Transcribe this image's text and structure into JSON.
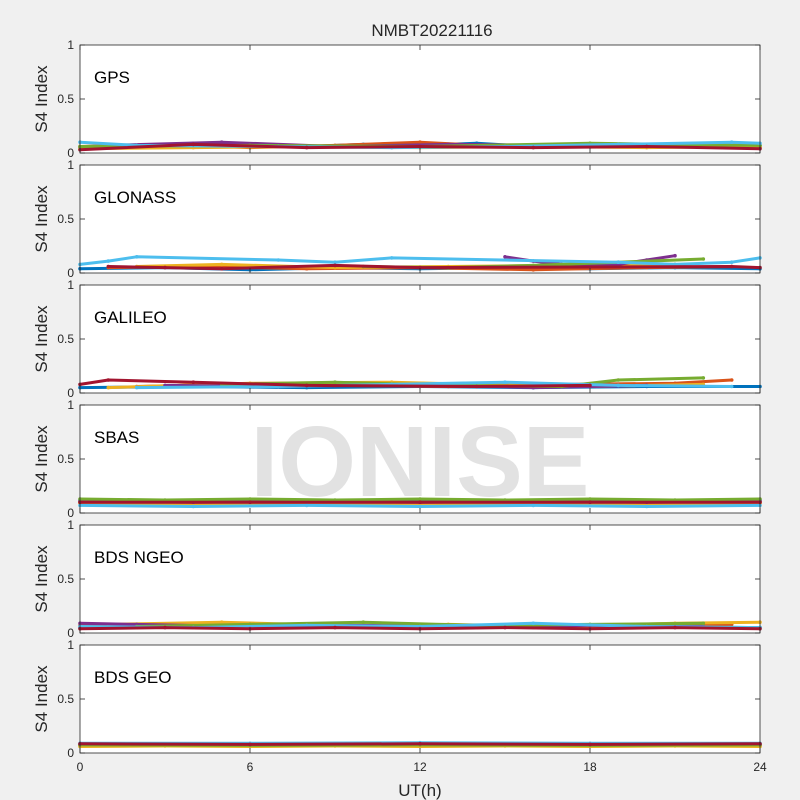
{
  "figure": {
    "title": "NMBT20221116",
    "watermark": "IONISE",
    "xlabel": "UT(h)"
  },
  "colors": [
    "#0072BD",
    "#D95319",
    "#EDB120",
    "#7E2F8E",
    "#77AC30",
    "#4DBEEE",
    "#A2142F"
  ],
  "chart_data": [
    {
      "type": "scatter",
      "label": "GPS",
      "ylabel": "S4 Index",
      "xlim": [
        0,
        24
      ],
      "ylim": [
        0,
        1
      ],
      "xticks": [
        0,
        6,
        12,
        18,
        24
      ],
      "yticks": [
        0,
        0.5,
        1
      ],
      "series": [
        {
          "x": [
            0,
            2,
            4,
            6,
            8,
            10,
            12,
            14,
            16,
            18,
            20,
            22,
            24
          ],
          "y": [
            0.05,
            0.06,
            0.09,
            0.07,
            0.06,
            0.08,
            0.07,
            0.09,
            0.06,
            0.07,
            0.08,
            0.06,
            0.07
          ]
        },
        {
          "x": [
            0,
            3,
            6,
            9,
            12,
            15,
            18,
            21,
            24
          ],
          "y": [
            0.06,
            0.08,
            0.05,
            0.07,
            0.1,
            0.06,
            0.08,
            0.07,
            0.05
          ]
        },
        {
          "x": [
            0,
            4,
            8,
            12,
            16,
            20,
            24
          ],
          "y": [
            0.04,
            0.05,
            0.06,
            0.05,
            0.06,
            0.05,
            0.06
          ]
        },
        {
          "x": [
            1,
            5,
            9,
            13,
            17,
            21
          ],
          "y": [
            0.07,
            0.1,
            0.06,
            0.08,
            0.07,
            0.06
          ]
        },
        {
          "x": [
            0,
            6,
            12,
            18,
            24
          ],
          "y": [
            0.06,
            0.07,
            0.06,
            0.09,
            0.07
          ]
        },
        {
          "x": [
            0,
            2,
            7,
            11,
            15,
            19,
            23,
            24
          ],
          "y": [
            0.1,
            0.07,
            0.06,
            0.05,
            0.06,
            0.08,
            0.1,
            0.09
          ]
        },
        {
          "x": [
            0,
            4,
            8,
            12,
            16,
            20,
            24
          ],
          "y": [
            0.03,
            0.08,
            0.05,
            0.06,
            0.05,
            0.06,
            0.04
          ]
        }
      ]
    },
    {
      "type": "scatter",
      "label": "GLONASS",
      "ylabel": "S4 Index",
      "xlim": [
        0,
        24
      ],
      "ylim": [
        0,
        1
      ],
      "xticks": [
        0,
        6,
        12,
        18,
        24
      ],
      "yticks": [
        0,
        0.5,
        1
      ],
      "series": [
        {
          "x": [
            0,
            3,
            6,
            9,
            12,
            15,
            18,
            21,
            24
          ],
          "y": [
            0.04,
            0.05,
            0.03,
            0.05,
            0.04,
            0.05,
            0.04,
            0.05,
            0.04
          ]
        },
        {
          "x": [
            1,
            4,
            8,
            12,
            16,
            20,
            23
          ],
          "y": [
            0.05,
            0.06,
            0.04,
            0.05,
            0.03,
            0.05,
            0.06
          ]
        },
        {
          "x": [
            2,
            5,
            9,
            13,
            17,
            21
          ],
          "y": [
            0.06,
            0.08,
            0.05,
            0.06,
            0.07,
            0.08
          ]
        },
        {
          "x": [
            15,
            16,
            17,
            18,
            19,
            20,
            21
          ],
          "y": [
            0.15,
            0.11,
            0.08,
            0.07,
            0.08,
            0.12,
            0.16
          ]
        },
        {
          "x": [
            10,
            13,
            16,
            19,
            22
          ],
          "y": [
            0.06,
            0.05,
            0.07,
            0.1,
            0.13
          ]
        },
        {
          "x": [
            0,
            1,
            2,
            7,
            9,
            11,
            19,
            21,
            23,
            24
          ],
          "y": [
            0.08,
            0.11,
            0.15,
            0.12,
            0.1,
            0.14,
            0.1,
            0.08,
            0.1,
            0.14
          ]
        },
        {
          "x": [
            1,
            3,
            5,
            9,
            12,
            23,
            24
          ],
          "y": [
            0.06,
            0.05,
            0.04,
            0.07,
            0.05,
            0.06,
            0.05
          ]
        }
      ]
    },
    {
      "type": "scatter",
      "label": "GALILEO",
      "ylabel": "S4 Index",
      "xlim": [
        0,
        24
      ],
      "ylim": [
        0,
        1
      ],
      "xticks": [
        0,
        6,
        12,
        18,
        24
      ],
      "yticks": [
        0,
        0.5,
        1
      ],
      "series": [
        {
          "x": [
            0,
            4,
            8,
            12,
            16,
            20,
            24
          ],
          "y": [
            0.05,
            0.06,
            0.05,
            0.06,
            0.05,
            0.06,
            0.06
          ]
        },
        {
          "x": [
            2,
            5,
            9,
            13,
            17,
            21,
            23
          ],
          "y": [
            0.06,
            0.08,
            0.07,
            0.06,
            0.08,
            0.09,
            0.12
          ]
        },
        {
          "x": [
            1,
            6,
            11,
            14,
            18,
            22
          ],
          "y": [
            0.05,
            0.09,
            0.1,
            0.08,
            0.06,
            0.08
          ]
        },
        {
          "x": [
            3,
            7,
            12,
            16,
            20
          ],
          "y": [
            0.07,
            0.06,
            0.08,
            0.05,
            0.07
          ]
        },
        {
          "x": [
            5,
            9,
            13,
            17,
            19,
            22
          ],
          "y": [
            0.08,
            0.1,
            0.07,
            0.06,
            0.12,
            0.14
          ]
        },
        {
          "x": [
            2,
            7,
            11,
            15,
            19,
            23
          ],
          "y": [
            0.05,
            0.06,
            0.08,
            0.1,
            0.07,
            0.06
          ]
        },
        {
          "x": [
            0,
            1,
            4,
            8,
            14,
            18
          ],
          "y": [
            0.08,
            0.12,
            0.1,
            0.07,
            0.06,
            0.07
          ]
        }
      ]
    },
    {
      "type": "scatter",
      "label": "SBAS",
      "ylabel": "S4 Index",
      "xlim": [
        0,
        24
      ],
      "ylim": [
        0,
        1
      ],
      "xticks": [
        0,
        6,
        12,
        18,
        24
      ],
      "yticks": [
        0,
        0.5,
        1
      ],
      "series": [
        {
          "x": [
            0,
            3,
            6,
            9,
            12,
            15,
            18,
            21,
            24
          ],
          "y": [
            0.12,
            0.11,
            0.12,
            0.11,
            0.12,
            0.11,
            0.12,
            0.11,
            0.12
          ]
        },
        {
          "x": [
            0,
            4,
            8,
            12,
            16,
            20,
            24
          ],
          "y": [
            0.1,
            0.09,
            0.1,
            0.09,
            0.1,
            0.09,
            0.1
          ]
        },
        {
          "x": [
            0,
            3,
            6,
            9,
            12,
            15,
            18,
            21,
            24
          ],
          "y": [
            0.09,
            0.08,
            0.09,
            0.08,
            0.09,
            0.08,
            0.09,
            0.08,
            0.09
          ]
        },
        {
          "x": [
            0,
            4,
            8,
            12,
            16,
            20,
            24
          ],
          "y": [
            0.11,
            0.1,
            0.11,
            0.1,
            0.11,
            0.1,
            0.11
          ]
        },
        {
          "x": [
            0,
            3,
            6,
            9,
            12,
            15,
            18,
            21,
            24
          ],
          "y": [
            0.13,
            0.12,
            0.13,
            0.12,
            0.13,
            0.12,
            0.13,
            0.12,
            0.13
          ]
        },
        {
          "x": [
            0,
            4,
            8,
            12,
            16,
            20,
            24
          ],
          "y": [
            0.07,
            0.06,
            0.07,
            0.06,
            0.07,
            0.06,
            0.07
          ]
        },
        {
          "x": [
            0,
            6,
            12,
            18,
            24
          ],
          "y": [
            0.1,
            0.1,
            0.1,
            0.1,
            0.1
          ]
        }
      ]
    },
    {
      "type": "scatter",
      "label": "BDS NGEO",
      "ylabel": "S4 Index",
      "xlim": [
        0,
        24
      ],
      "ylim": [
        0,
        1
      ],
      "xticks": [
        0,
        6,
        12,
        18,
        24
      ],
      "yticks": [
        0,
        0.5,
        1
      ],
      "series": [
        {
          "x": [
            0,
            4,
            8,
            12,
            16,
            20,
            24
          ],
          "y": [
            0.05,
            0.06,
            0.05,
            0.06,
            0.05,
            0.06,
            0.05
          ]
        },
        {
          "x": [
            0,
            3,
            7,
            11,
            15,
            19,
            23
          ],
          "y": [
            0.07,
            0.06,
            0.08,
            0.06,
            0.07,
            0.06,
            0.08
          ]
        },
        {
          "x": [
            1,
            5,
            9,
            13,
            17,
            21,
            24
          ],
          "y": [
            0.08,
            0.1,
            0.07,
            0.08,
            0.06,
            0.09,
            0.1
          ]
        },
        {
          "x": [
            0,
            2,
            6,
            10,
            14,
            18,
            22
          ],
          "y": [
            0.09,
            0.08,
            0.06,
            0.07,
            0.06,
            0.07,
            0.06
          ]
        },
        {
          "x": [
            2,
            6,
            10,
            14,
            18,
            22
          ],
          "y": [
            0.06,
            0.08,
            0.1,
            0.07,
            0.08,
            0.09
          ]
        },
        {
          "x": [
            0,
            4,
            8,
            12,
            16,
            20,
            24
          ],
          "y": [
            0.06,
            0.05,
            0.07,
            0.06,
            0.09,
            0.06,
            0.05
          ]
        },
        {
          "x": [
            0,
            3,
            6,
            9,
            12,
            15,
            18,
            21,
            24
          ],
          "y": [
            0.04,
            0.05,
            0.04,
            0.05,
            0.04,
            0.05,
            0.04,
            0.05,
            0.04
          ]
        }
      ]
    },
    {
      "type": "scatter",
      "label": "BDS GEO",
      "ylabel": "S4 Index",
      "xlim": [
        0,
        24
      ],
      "ylim": [
        0,
        1
      ],
      "xticks": [
        0,
        6,
        12,
        18,
        24
      ],
      "yticks": [
        0,
        0.5,
        1
      ],
      "series": [
        {
          "x": [
            0,
            3,
            6,
            9,
            12,
            15,
            18,
            21,
            24
          ],
          "y": [
            0.08,
            0.08,
            0.08,
            0.08,
            0.08,
            0.08,
            0.08,
            0.08,
            0.08
          ]
        },
        {
          "x": [
            0,
            3,
            6,
            9,
            12,
            15,
            18,
            21,
            24
          ],
          "y": [
            0.07,
            0.075,
            0.07,
            0.075,
            0.07,
            0.075,
            0.07,
            0.075,
            0.07
          ]
        },
        {
          "x": [
            0,
            3,
            6,
            9,
            12,
            15,
            18,
            21,
            24
          ],
          "y": [
            0.06,
            0.065,
            0.06,
            0.065,
            0.06,
            0.065,
            0.06,
            0.065,
            0.06
          ]
        },
        {
          "x": [
            0,
            6,
            12,
            18,
            24
          ],
          "y": [
            0.08,
            0.085,
            0.08,
            0.085,
            0.08
          ]
        },
        {
          "x": [
            0,
            6,
            12,
            18,
            24
          ],
          "y": [
            0.075,
            0.07,
            0.075,
            0.07,
            0.075
          ]
        },
        {
          "x": [
            0,
            6,
            12,
            18,
            24
          ],
          "y": [
            0.09,
            0.09,
            0.095,
            0.09,
            0.09
          ]
        },
        {
          "x": [
            0,
            6,
            12,
            18,
            24
          ],
          "y": [
            0.085,
            0.08,
            0.085,
            0.08,
            0.085
          ]
        }
      ]
    }
  ]
}
